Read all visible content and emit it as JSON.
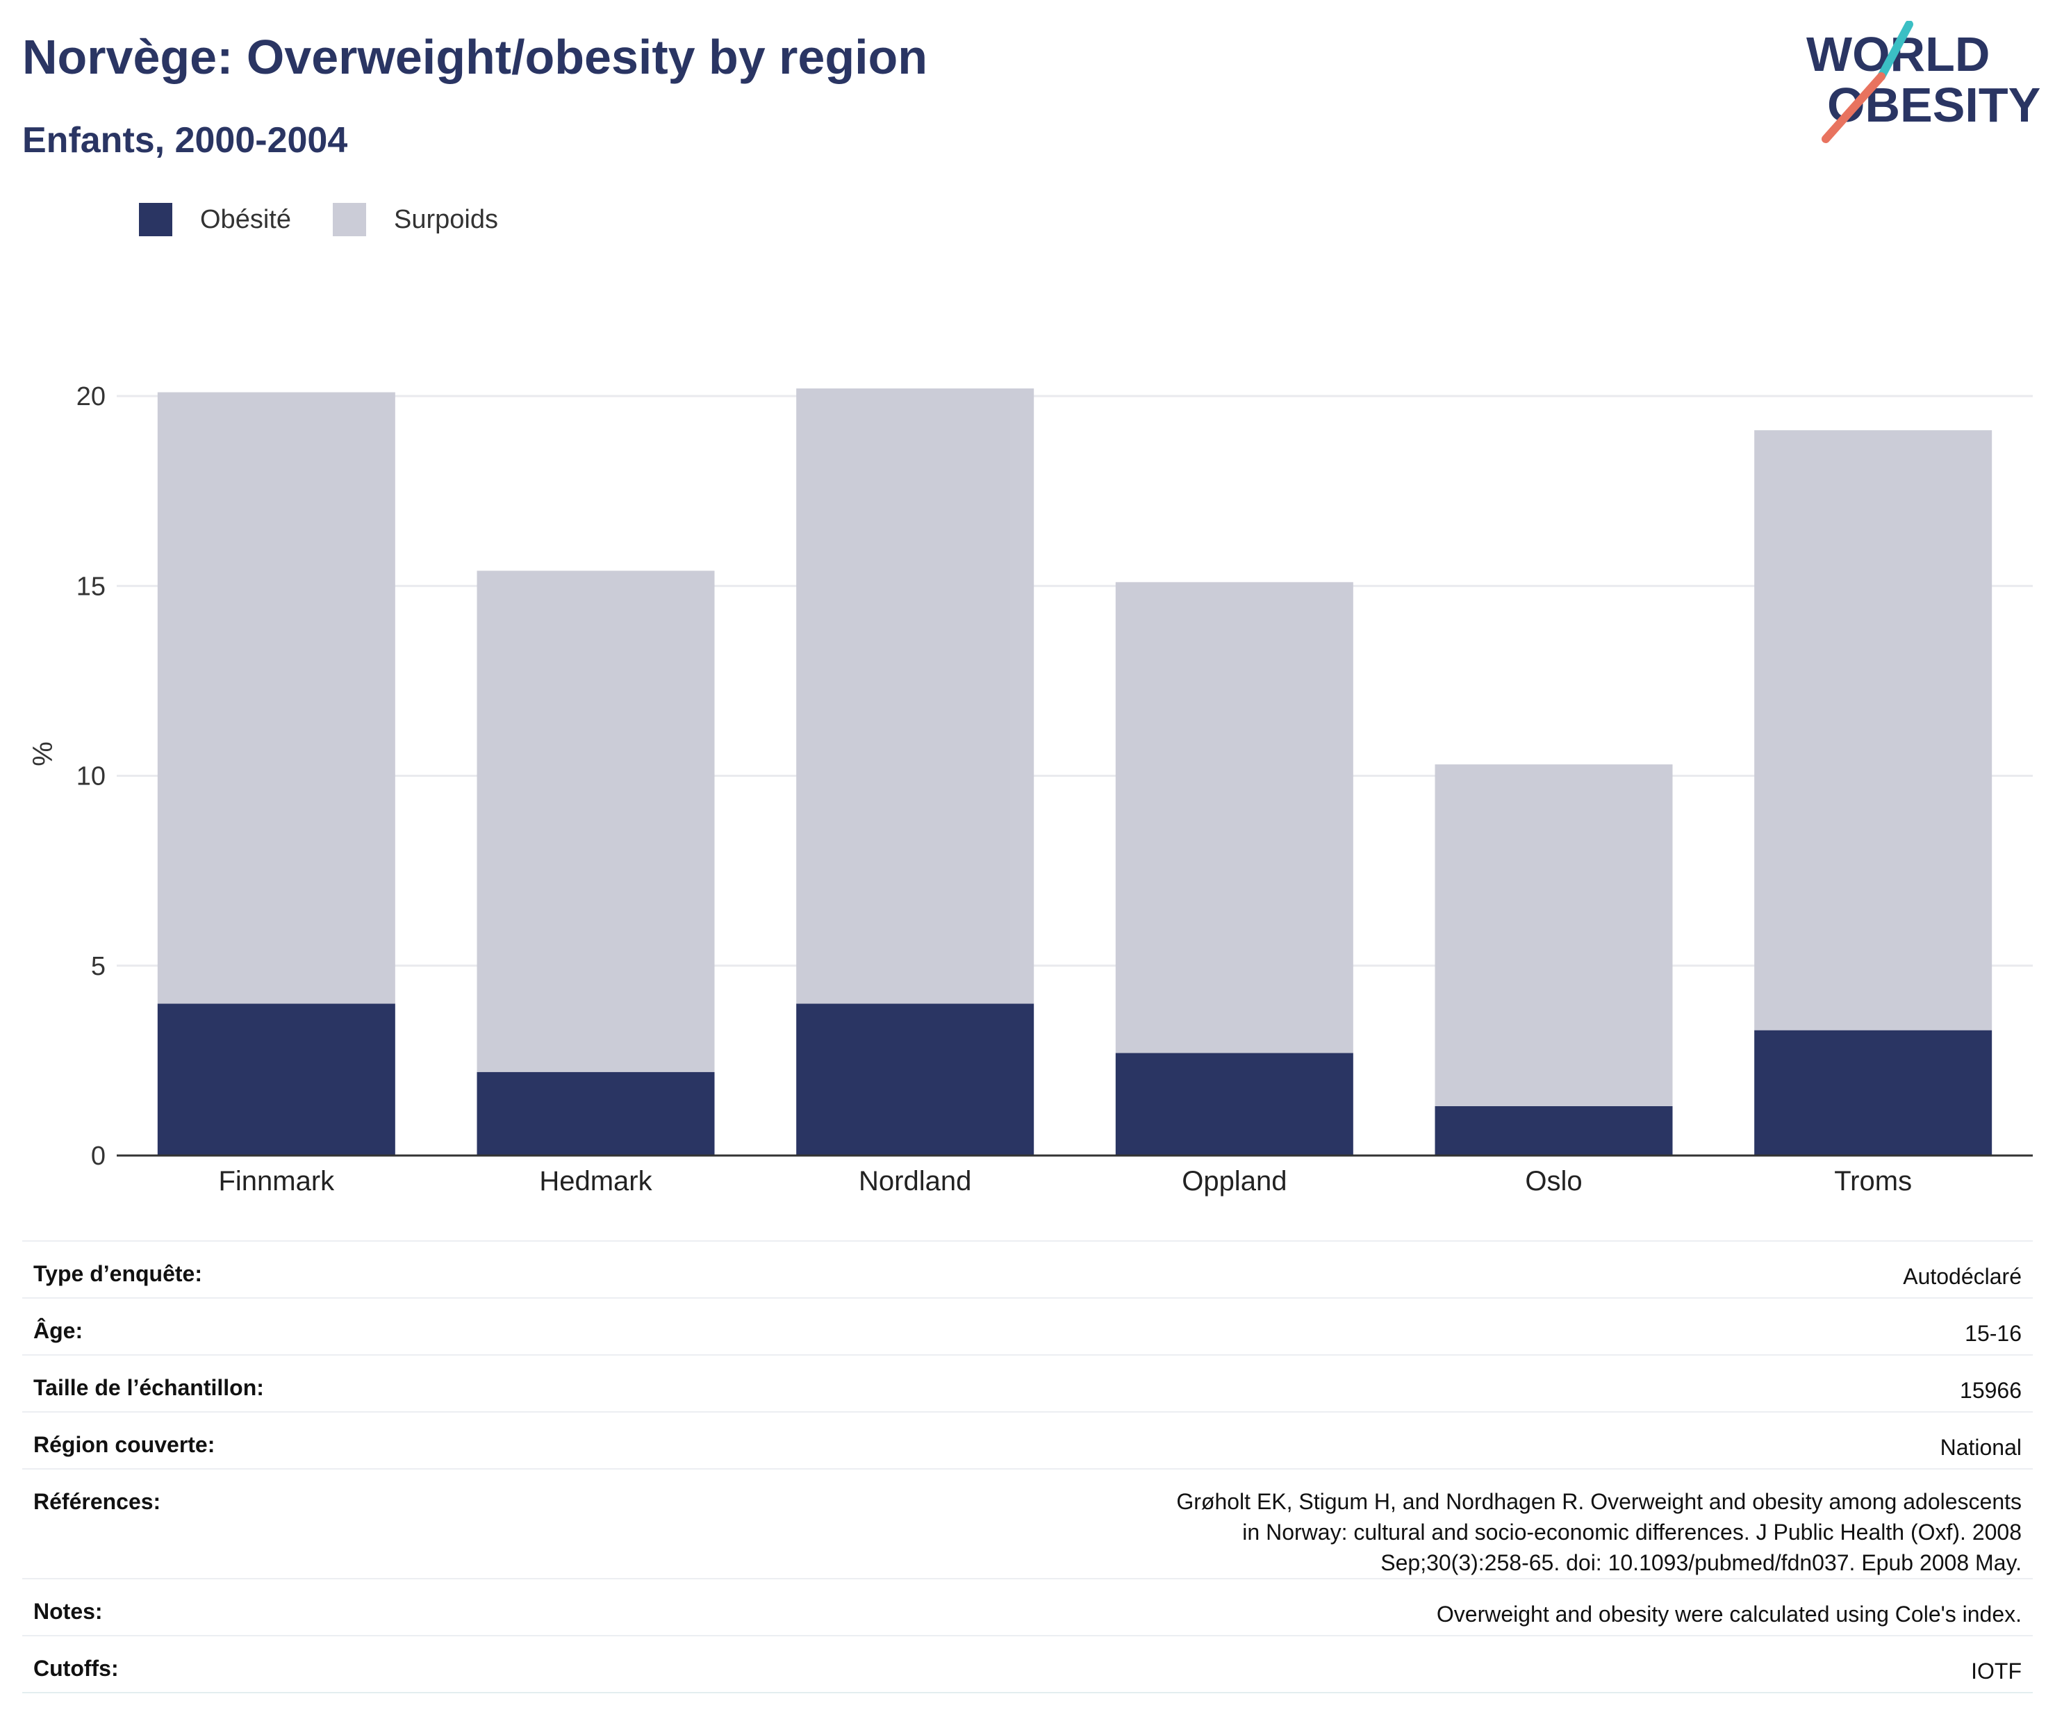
{
  "header": {
    "title": "Norvège: Overweight/obesity by region",
    "subtitle": "Enfants, 2000-2004"
  },
  "logo": {
    "line1": "WORLD",
    "line2": "OBESITY",
    "accent_teal": "#3bbfc4",
    "accent_coral": "#e8735f"
  },
  "colors": {
    "obesity": "#2a3563",
    "overweight": "#cbccd7",
    "grid": "#e9eaee",
    "axis": "#333333"
  },
  "legend": [
    {
      "label": "Obésité",
      "color": "#2a3563"
    },
    {
      "label": "Surpoids",
      "color": "#cbccd7"
    }
  ],
  "chart_data": {
    "type": "bar",
    "stacked": true,
    "ylabel": "%",
    "ylim": [
      0,
      20
    ],
    "yticks": [
      0,
      5,
      10,
      15,
      20
    ],
    "grid": true,
    "legend_position": "top-left",
    "categories": [
      "Finnmark",
      "Hedmark",
      "Nordland",
      "Oppland",
      "Oslo",
      "Troms"
    ],
    "series": [
      {
        "name": "Obésité",
        "values": [
          4.0,
          2.2,
          4.0,
          2.7,
          1.3,
          3.3
        ]
      },
      {
        "name": "Surpoids",
        "values": [
          16.1,
          13.2,
          16.2,
          12.4,
          9.0,
          15.8
        ]
      }
    ]
  },
  "info": [
    {
      "key": "Type d’enquête:",
      "value": "Autodéclaré"
    },
    {
      "key": "Âge:",
      "value": "15-16"
    },
    {
      "key": "Taille de l’échantillon:",
      "value": "15966"
    },
    {
      "key": "Région couverte:",
      "value": "National"
    },
    {
      "key": "Références:",
      "value": "Grøholt EK, Stigum H, and Nordhagen R. Overweight and obesity among adolescents in Norway: cultural and socio-economic differences. J Public Health (Oxf). 2008 Sep;30(3):258-65. doi: 10.1093/pubmed/fdn037. Epub 2008 May."
    },
    {
      "key": "Notes:",
      "value": "Overweight and obesity were calculated using Cole's index."
    },
    {
      "key": "Cutoffs:",
      "value": "IOTF"
    }
  ]
}
